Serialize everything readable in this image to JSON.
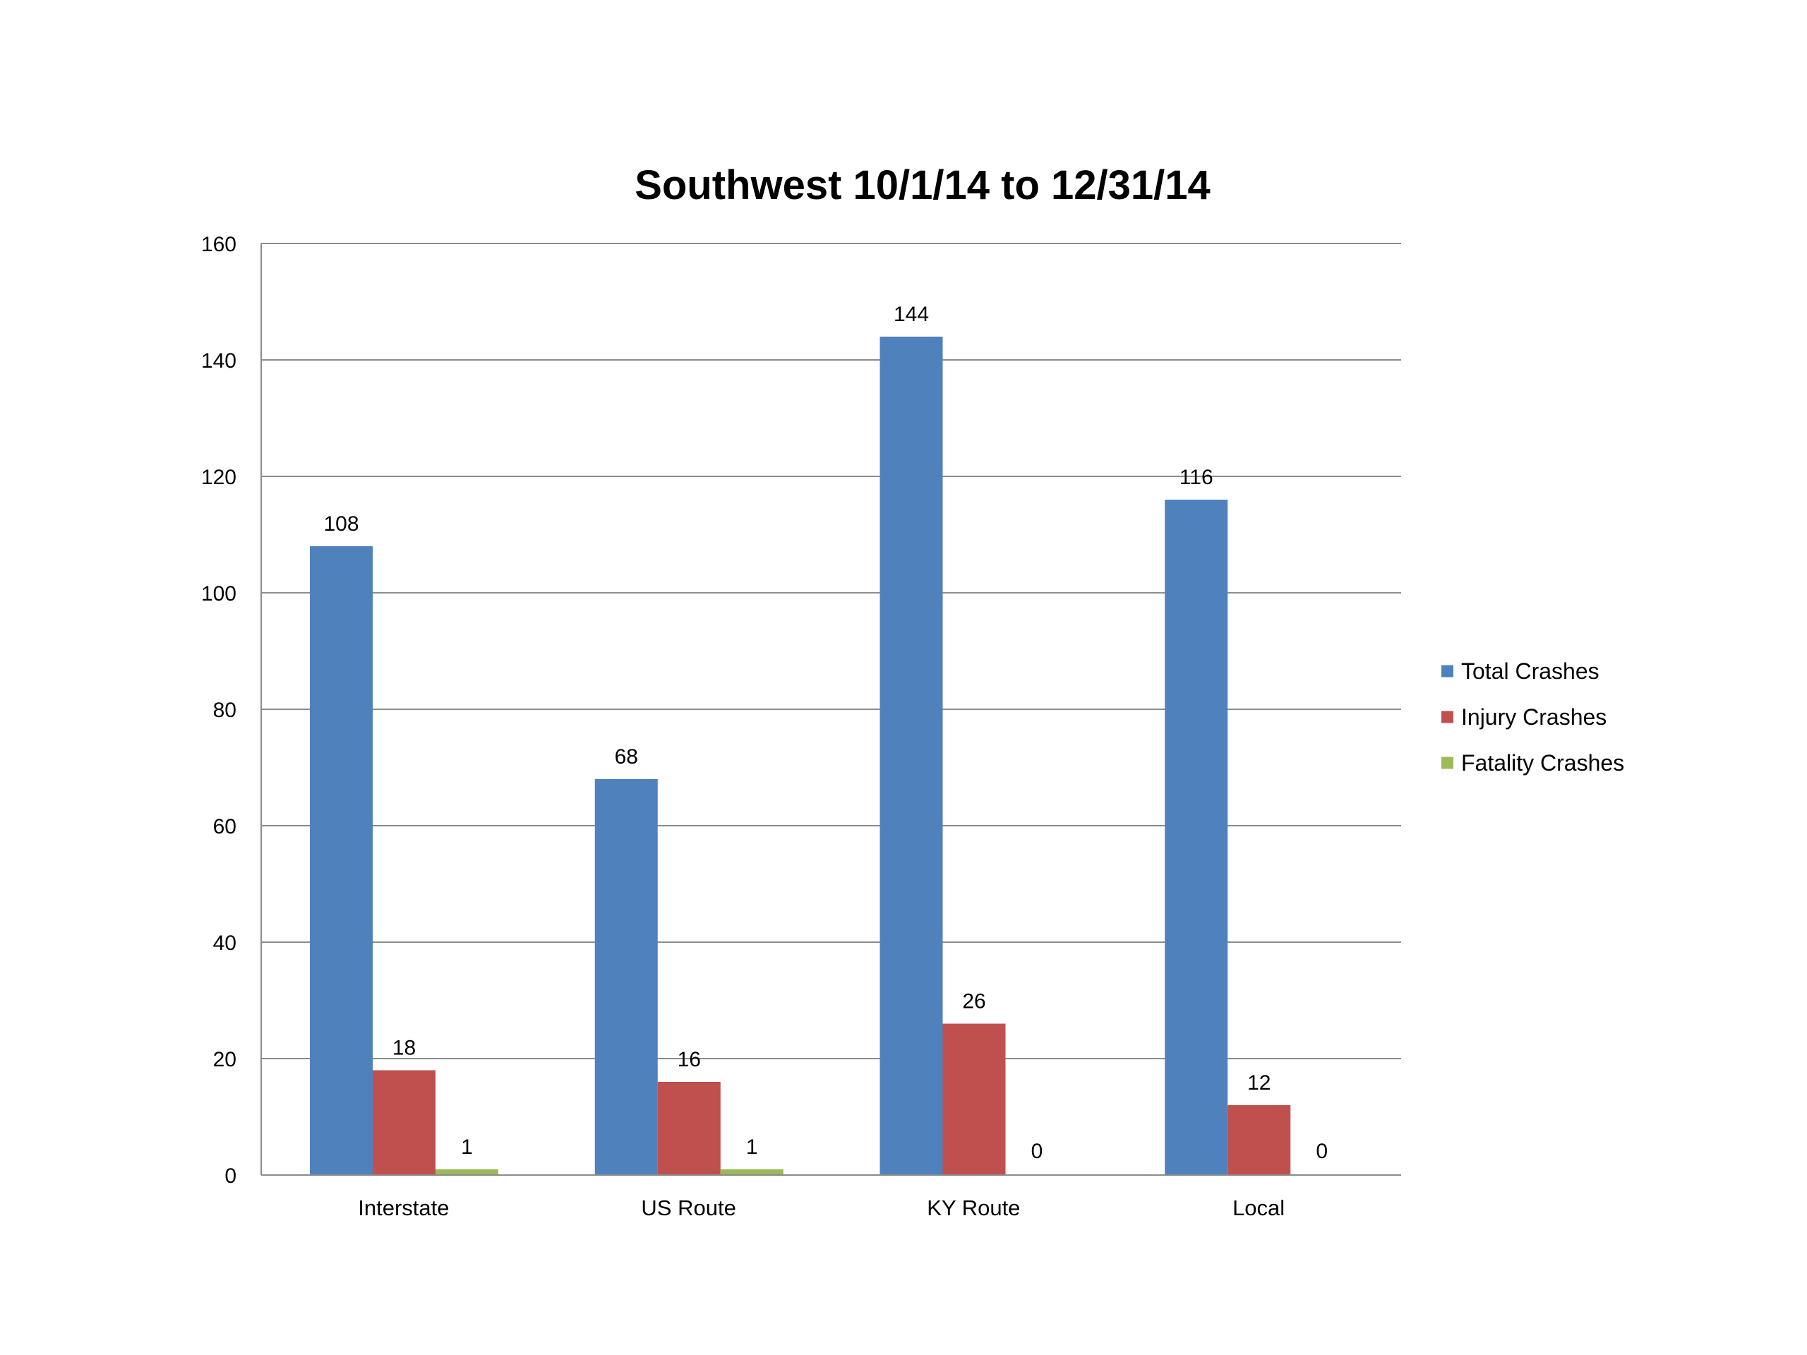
{
  "chart_data": {
    "type": "bar",
    "title": "Southwest 10/1/14 to 12/31/14",
    "xlabel": "",
    "ylabel": "",
    "categories": [
      "Interstate",
      "US Route",
      "KY Route",
      "Local"
    ],
    "series": [
      {
        "name": "Total Crashes",
        "color": "#4F81BD",
        "values": [
          108,
          68,
          144,
          116
        ]
      },
      {
        "name": "Injury Crashes",
        "color": "#C0504D",
        "values": [
          18,
          16,
          26,
          12
        ]
      },
      {
        "name": "Fatality Crashes",
        "color": "#9BBB59",
        "values": [
          1,
          1,
          0,
          0
        ]
      }
    ],
    "ylim": [
      0,
      160
    ],
    "yticks": [
      0,
      20,
      40,
      60,
      80,
      100,
      120,
      140,
      160
    ],
    "grid": true,
    "legend_position": "right",
    "data_labels": true
  }
}
